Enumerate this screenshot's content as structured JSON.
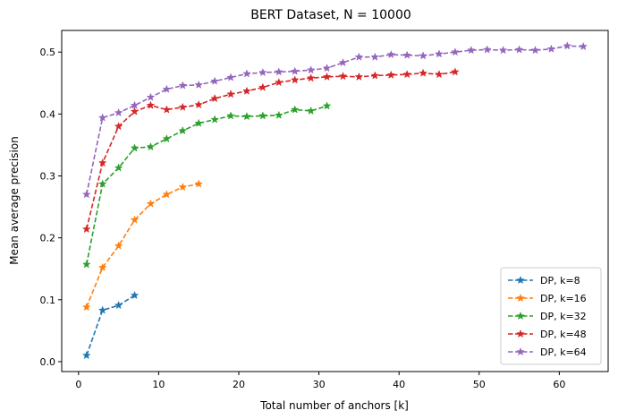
{
  "chart_data": {
    "type": "line",
    "title": "BERT Dataset, N = 10000",
    "xlabel": "Total number of anchors [k]",
    "ylabel": "Mean average precision",
    "xlim": [
      -2.1,
      66.1
    ],
    "ylim": [
      -0.016,
      0.535
    ],
    "xticks": [
      0,
      10,
      20,
      30,
      40,
      50,
      60
    ],
    "yticks": [
      0.0,
      0.1,
      0.2,
      0.3,
      0.4,
      0.5
    ],
    "ytick_labels": [
      "0.0",
      "0.1",
      "0.2",
      "0.3",
      "0.4",
      "0.5"
    ],
    "grid": false,
    "legend_position": "lower right",
    "marker": "star",
    "line_style": "dashed",
    "series": [
      {
        "name": "DP, k=8",
        "color": "#1f77b4",
        "x": [
          1,
          3,
          5,
          7
        ],
        "y": [
          0.01,
          0.083,
          0.091,
          0.107
        ]
      },
      {
        "name": "DP, k=16",
        "color": "#ff7f0e",
        "x": [
          1,
          3,
          5,
          7,
          9,
          11,
          13,
          15
        ],
        "y": [
          0.088,
          0.152,
          0.187,
          0.229,
          0.255,
          0.27,
          0.282,
          0.287
        ]
      },
      {
        "name": "DP, k=32",
        "color": "#2ca02c",
        "x": [
          1,
          3,
          5,
          7,
          9,
          11,
          13,
          15,
          17,
          19,
          21,
          23,
          25,
          27,
          29,
          31
        ],
        "y": [
          0.157,
          0.287,
          0.313,
          0.345,
          0.347,
          0.36,
          0.373,
          0.385,
          0.391,
          0.397,
          0.396,
          0.397,
          0.398,
          0.407,
          0.405,
          0.413
        ]
      },
      {
        "name": "DP, k=48",
        "color": "#d62728",
        "x": [
          1,
          3,
          5,
          7,
          9,
          11,
          13,
          15,
          17,
          19,
          21,
          23,
          25,
          27,
          29,
          31,
          33,
          35,
          37,
          39,
          41,
          43,
          45,
          47
        ],
        "y": [
          0.214,
          0.321,
          0.38,
          0.404,
          0.414,
          0.407,
          0.411,
          0.415,
          0.425,
          0.432,
          0.437,
          0.443,
          0.451,
          0.455,
          0.458,
          0.46,
          0.461,
          0.46,
          0.462,
          0.463,
          0.464,
          0.466,
          0.464,
          0.468
        ]
      },
      {
        "name": "DP, k=64",
        "color": "#9467bd",
        "x": [
          1,
          3,
          5,
          7,
          9,
          11,
          13,
          15,
          17,
          19,
          21,
          23,
          25,
          27,
          29,
          31,
          33,
          35,
          37,
          39,
          41,
          43,
          45,
          47,
          49,
          51,
          53,
          55,
          57,
          59,
          61,
          63
        ],
        "y": [
          0.27,
          0.394,
          0.402,
          0.414,
          0.427,
          0.44,
          0.446,
          0.447,
          0.453,
          0.459,
          0.465,
          0.467,
          0.468,
          0.469,
          0.471,
          0.474,
          0.483,
          0.492,
          0.492,
          0.496,
          0.495,
          0.494,
          0.497,
          0.5,
          0.503,
          0.504,
          0.503,
          0.504,
          0.503,
          0.505,
          0.51,
          0.509
        ]
      }
    ]
  }
}
